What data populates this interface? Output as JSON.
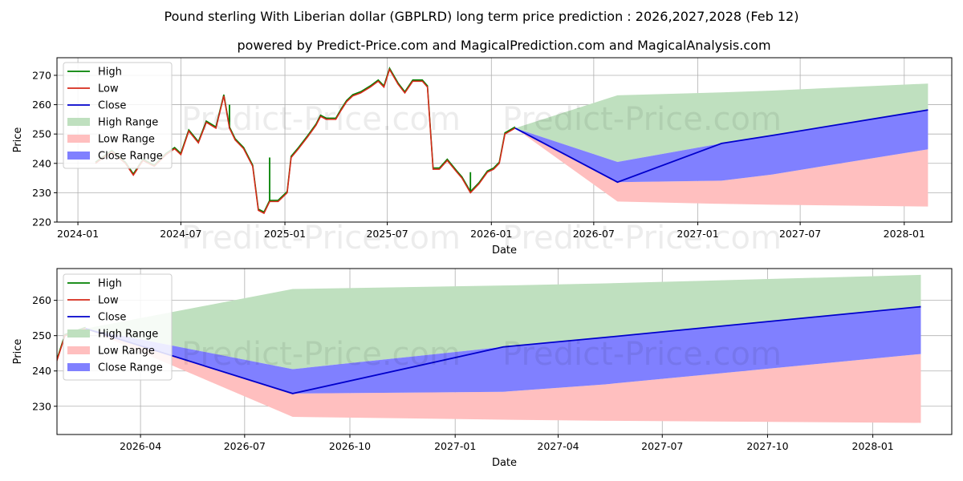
{
  "chart_data": {
    "type": "line",
    "title": "Pound sterling With Liberian dollar (GBPLRD) long term price prediction : 2026,2027,2028 (Feb 12)",
    "subtitle": "powered by Predict-Price.com and MagicalPrediction.com and MagicalAnalysis.com",
    "watermark": "Predict-Price.com",
    "colors": {
      "high": "#008000",
      "low": "#d62a1a",
      "close": "#0000cc",
      "high_range": "#bfe0bf",
      "low_range": "#ffbfbf",
      "close_range": "#8080ff",
      "grid": "#b0b0b0"
    },
    "legend": {
      "position": "top-left",
      "entries": [
        "High",
        "Low",
        "Close",
        "High Range",
        "Low Range",
        "Close Range"
      ]
    },
    "forecast": {
      "dates": [
        "2026-02-12",
        "2026-08-12",
        "2027-02-12",
        "2027-05-12",
        "2028-02-12"
      ],
      "close": [
        252,
        233.6,
        246.8,
        249.5,
        258.2
      ],
      "high_range_upper": [
        252,
        263.2,
        264.2,
        264.8,
        267.2
      ],
      "high_range_lower": [
        252,
        240.5,
        246.8,
        249.5,
        258.2
      ],
      "close_range_upper": [
        252,
        240.5,
        246.8,
        249.5,
        258.2
      ],
      "close_range_lower": [
        252,
        233.6,
        234.1,
        236.2,
        244.8
      ],
      "low_range_upper": [
        252,
        233.6,
        234.1,
        236.2,
        244.8
      ],
      "low_range_lower": [
        252,
        227.0,
        226.2,
        225.9,
        225.3
      ]
    },
    "history": {
      "dates": [
        "2024-02-01",
        "2024-03-01",
        "2024-03-25",
        "2024-04-08",
        "2024-04-25",
        "2024-05-15",
        "2024-06-05",
        "2024-06-20",
        "2024-07-01",
        "2024-07-15",
        "2024-08-01",
        "2024-08-15",
        "2024-09-01",
        "2024-09-15",
        "2024-09-25",
        "2024-10-05",
        "2024-10-20",
        "2024-11-05",
        "2024-11-15",
        "2024-11-25",
        "2024-12-05",
        "2024-12-20",
        "2025-01-05",
        "2025-01-12",
        "2025-01-25",
        "2025-02-10",
        "2025-02-25",
        "2025-03-05",
        "2025-03-15",
        "2025-04-01",
        "2025-04-10",
        "2025-04-20",
        "2025-05-01",
        "2025-05-15",
        "2025-06-01",
        "2025-06-15",
        "2025-06-25",
        "2025-07-05",
        "2025-07-20",
        "2025-08-01",
        "2025-08-15",
        "2025-09-01",
        "2025-09-10",
        "2025-09-20",
        "2025-10-01",
        "2025-10-15",
        "2025-11-01",
        "2025-11-10",
        "2025-11-25",
        "2025-12-10",
        "2025-12-25",
        "2026-01-05",
        "2026-01-15",
        "2026-01-25",
        "2026-02-12"
      ],
      "close": [
        240,
        244,
        240,
        236,
        241,
        239,
        243,
        245,
        243,
        251,
        247,
        254,
        252,
        263,
        252,
        248,
        245,
        239,
        224,
        223,
        227,
        227,
        230,
        242,
        245,
        249,
        253,
        256,
        255,
        255,
        258,
        261,
        263,
        264,
        266,
        268,
        266,
        272,
        267,
        264,
        268,
        268,
        266,
        238,
        238,
        241,
        237,
        235,
        230,
        233,
        237,
        238,
        240,
        250,
        252
      ],
      "high_spikes": [
        {
          "date": "2024-12-05",
          "value": 242
        },
        {
          "date": "2024-09-25",
          "value": 260
        },
        {
          "date": "2025-11-25",
          "value": 237
        }
      ]
    },
    "panels": [
      {
        "xlabel": "Date",
        "ylabel": "Price",
        "xlim": [
          "2023-11-25",
          "2028-03-25"
        ],
        "ylim": [
          220,
          276
        ],
        "xticks": [
          "2024-01",
          "2024-07",
          "2025-01",
          "2025-07",
          "2026-01",
          "2026-07",
          "2027-01",
          "2027-07",
          "2028-01"
        ],
        "xtick_dates": [
          "2024-01-01",
          "2024-07-01",
          "2025-01-01",
          "2025-07-01",
          "2026-01-01",
          "2026-07-01",
          "2027-01-01",
          "2027-07-01",
          "2028-01-01"
        ],
        "yticks": [
          220,
          230,
          240,
          250,
          260,
          270
        ]
      },
      {
        "xlabel": "Date",
        "ylabel": "Price",
        "xlim": [
          "2026-01-18",
          "2028-03-10"
        ],
        "ylim": [
          222,
          269
        ],
        "xticks": [
          "2026-04",
          "2026-07",
          "2026-10",
          "2027-01",
          "2027-04",
          "2027-07",
          "2027-10",
          "2028-01"
        ],
        "xtick_dates": [
          "2026-04-01",
          "2026-07-01",
          "2026-10-01",
          "2027-01-01",
          "2027-04-01",
          "2027-07-01",
          "2027-10-01",
          "2028-01-01"
        ],
        "yticks": [
          230,
          240,
          250,
          260
        ]
      }
    ]
  }
}
